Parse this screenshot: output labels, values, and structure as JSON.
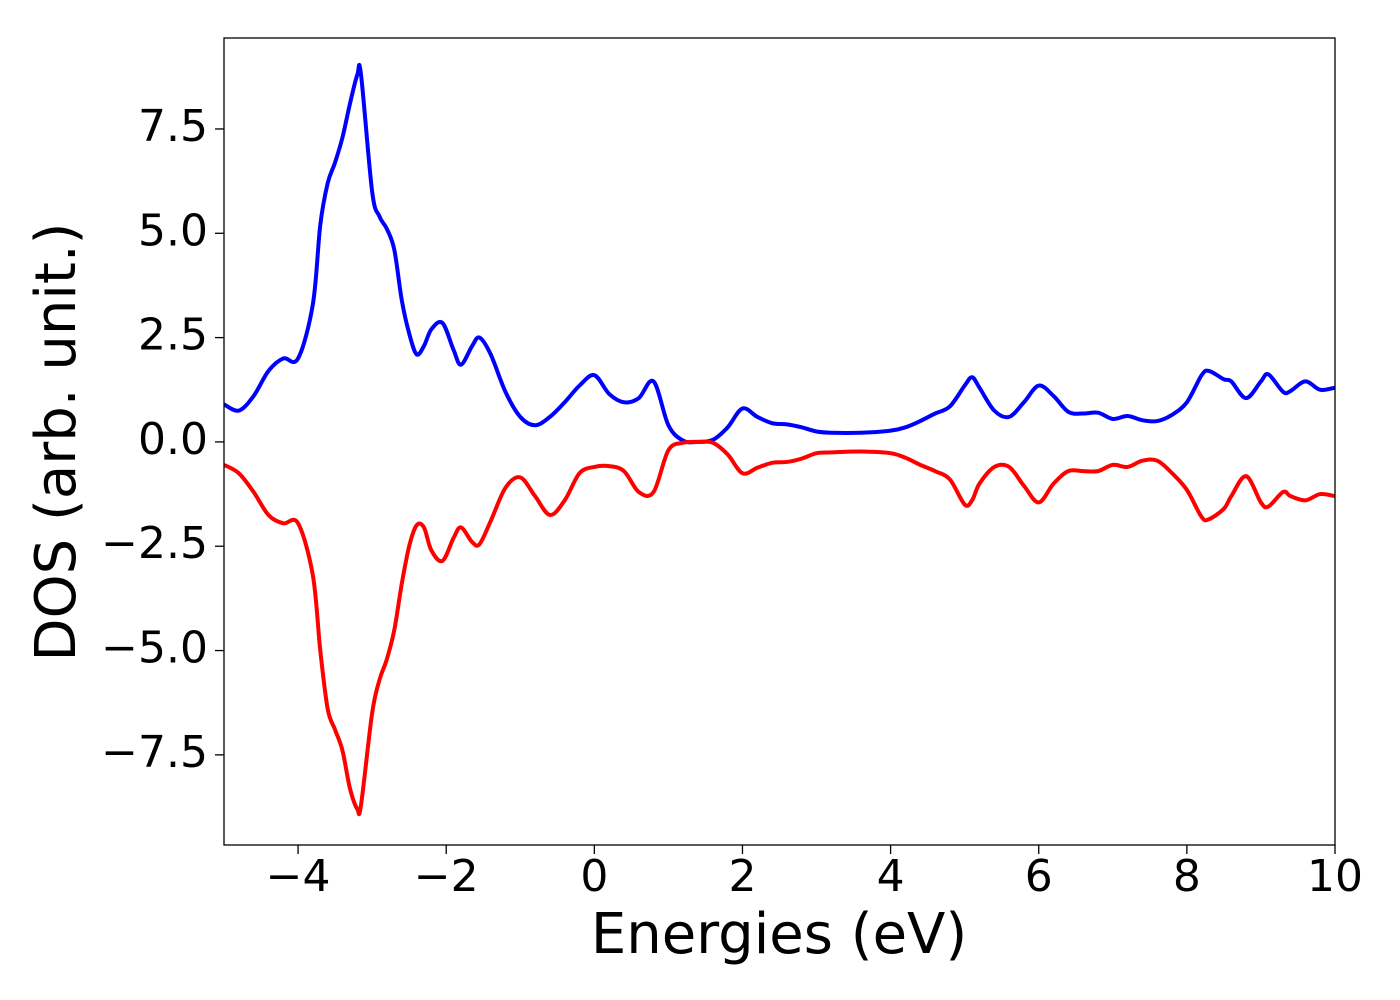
{
  "chart_data": {
    "type": "line",
    "xlabel": "Energies (eV)",
    "ylabel": "DOS (arb. unit.)",
    "x": [
      -5,
      -4.8,
      -4.6,
      -4.4,
      -4.2,
      -4,
      -3.8,
      -3.7,
      -3.6,
      -3.5,
      -3.4,
      -3.3,
      -3.2,
      -3.15,
      -3,
      -2.9,
      -2.8,
      -2.7,
      -2.6,
      -2.5,
      -2.4,
      -2.3,
      -2.2,
      -2.05,
      -1.9,
      -1.8,
      -1.65,
      -1.55,
      -1.4,
      -1.2,
      -1,
      -0.8,
      -0.6,
      -0.4,
      -0.2,
      0,
      0.2,
      0.4,
      0.6,
      0.8,
      1,
      1.2,
      1.4,
      1.6,
      1.8,
      2,
      2.2,
      2.4,
      2.6,
      2.8,
      3,
      3.2,
      3.6,
      4,
      4.2,
      4.4,
      4.6,
      4.8,
      5,
      5.1,
      5.2,
      5.4,
      5.6,
      5.8,
      6,
      6.2,
      6.4,
      6.6,
      6.8,
      7,
      7.2,
      7.4,
      7.6,
      7.8,
      8,
      8.2,
      8.3,
      8.5,
      8.6,
      8.8,
      9,
      9.1,
      9.3,
      9.4,
      9.6,
      9.8,
      10
    ],
    "series": [
      {
        "color": "#0000ff",
        "values": [
          0.9,
          0.75,
          1.1,
          1.7,
          2.0,
          2.0,
          3.3,
          5.2,
          6.2,
          6.7,
          7.3,
          8.1,
          8.8,
          8.8,
          6.0,
          5.4,
          5.1,
          4.6,
          3.4,
          2.6,
          2.1,
          2.3,
          2.7,
          2.85,
          2.2,
          1.85,
          2.3,
          2.5,
          2.1,
          1.2,
          0.6,
          0.4,
          0.6,
          0.95,
          1.35,
          1.6,
          1.15,
          0.95,
          1.05,
          1.45,
          0.4,
          0.03,
          0.0,
          0.05,
          0.35,
          0.8,
          0.6,
          0.45,
          0.42,
          0.35,
          0.25,
          0.22,
          0.22,
          0.27,
          0.35,
          0.5,
          0.68,
          0.85,
          1.35,
          1.55,
          1.3,
          0.75,
          0.6,
          0.95,
          1.35,
          1.1,
          0.72,
          0.68,
          0.7,
          0.55,
          0.62,
          0.52,
          0.5,
          0.65,
          0.95,
          1.6,
          1.7,
          1.5,
          1.45,
          1.05,
          1.45,
          1.62,
          1.2,
          1.22,
          1.45,
          1.25,
          1.3
        ]
      },
      {
        "color": "#ff0000",
        "values": [
          -0.55,
          -0.75,
          -1.2,
          -1.75,
          -1.95,
          -1.95,
          -3.2,
          -5.0,
          -6.4,
          -6.9,
          -7.4,
          -8.3,
          -8.8,
          -8.7,
          -6.5,
          -5.7,
          -5.2,
          -4.5,
          -3.4,
          -2.5,
          -2.0,
          -2.05,
          -2.6,
          -2.85,
          -2.3,
          -2.05,
          -2.4,
          -2.45,
          -1.9,
          -1.1,
          -0.85,
          -1.3,
          -1.75,
          -1.4,
          -0.75,
          -0.6,
          -0.58,
          -0.7,
          -1.2,
          -1.2,
          -0.2,
          -0.02,
          0.0,
          -0.02,
          -0.3,
          -0.75,
          -0.62,
          -0.5,
          -0.48,
          -0.4,
          -0.27,
          -0.25,
          -0.23,
          -0.27,
          -0.38,
          -0.55,
          -0.7,
          -0.9,
          -1.5,
          -1.4,
          -1.0,
          -0.6,
          -0.6,
          -1.05,
          -1.45,
          -1.0,
          -0.7,
          -0.7,
          -0.7,
          -0.55,
          -0.6,
          -0.45,
          -0.45,
          -0.75,
          -1.15,
          -1.8,
          -1.85,
          -1.6,
          -1.3,
          -0.82,
          -1.45,
          -1.55,
          -1.2,
          -1.3,
          -1.4,
          -1.25,
          -1.3
        ]
      }
    ],
    "xlim": [
      -5,
      10
    ],
    "xticks": [
      {
        "value": -4,
        "label": "−4"
      },
      {
        "value": -2,
        "label": "−2"
      },
      0,
      2,
      4,
      6,
      8,
      10
    ],
    "ylim": [
      -9.66,
      9.68
    ],
    "yticks": [
      {
        "value": -7.5,
        "label": "−7.5"
      },
      {
        "value": -5,
        "label": "−5.0"
      },
      {
        "value": -2.5,
        "label": "−2.5"
      },
      {
        "value": 0,
        "label": "0.0"
      },
      {
        "value": 2.5,
        "label": "2.5"
      },
      {
        "value": 5,
        "label": "5.0"
      },
      {
        "value": 7.5,
        "label": "7.5"
      }
    ],
    "grid": false
  }
}
